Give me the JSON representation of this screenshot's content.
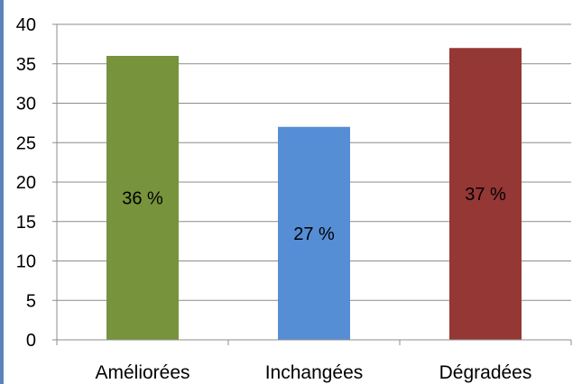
{
  "chart_data": {
    "type": "bar",
    "categories": [
      "Améliorées",
      "Inchangées",
      "Dégradées"
    ],
    "values": [
      36,
      27,
      37
    ],
    "data_labels": [
      "36 %",
      "27 %",
      "37 %"
    ],
    "colors": [
      "#77933c",
      "#558ed5",
      "#953735"
    ],
    "ylim": [
      0,
      40
    ],
    "yticks": [
      0,
      5,
      10,
      15,
      20,
      25,
      30,
      35,
      40
    ],
    "grid": true,
    "title": "",
    "xlabel": "",
    "ylabel": ""
  }
}
